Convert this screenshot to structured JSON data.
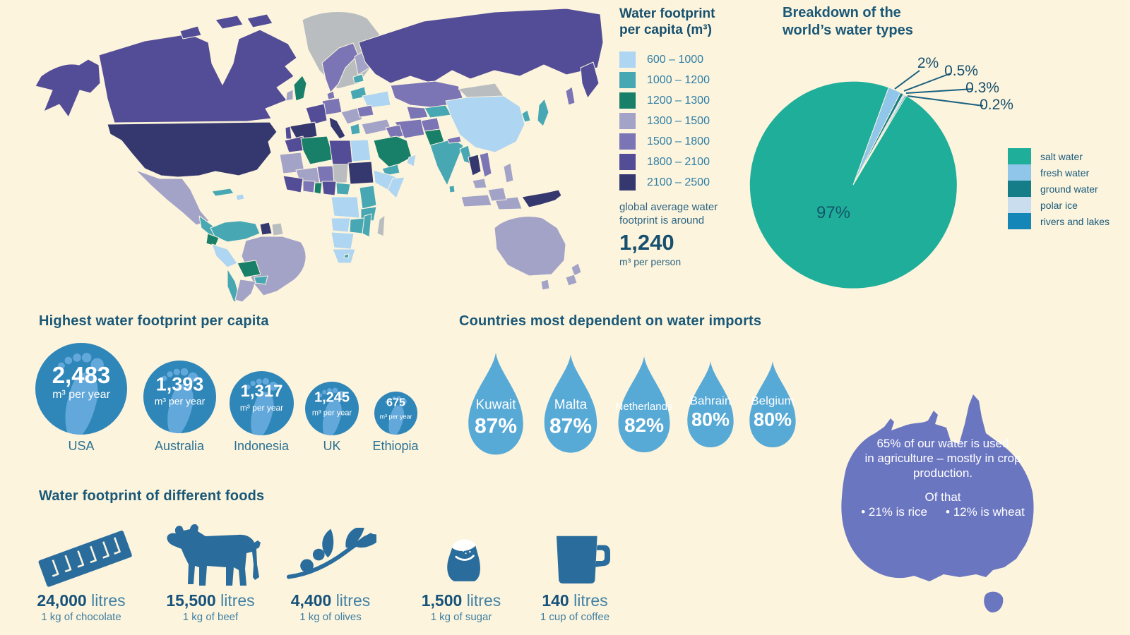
{
  "palette": {
    "background": "#fcf4dd",
    "heading_text": "#1a5878",
    "no_data_gray": "#b9bdbf",
    "footprint_circle_blue": "#2f86b8",
    "footprint_icon_blue": "#63a8da",
    "water_drop_blue": "#57a9d6",
    "australia_fill": "#6b76c1",
    "food_icon_blue": "#2a6d9d"
  },
  "chart_data": [
    {
      "type": "heatmap",
      "subtype": "world-choropleth",
      "title_line1": "Water footprint",
      "title_line2": "per capita (m³)",
      "bins": [
        {
          "label": "600 – 1000",
          "color": "#aed5f1"
        },
        {
          "label": "1000 – 1200",
          "color": "#47a8b4"
        },
        {
          "label": "1200 – 1300",
          "color": "#187f68"
        },
        {
          "label": "1300 – 1500",
          "color": "#a3a3c7"
        },
        {
          "label": "1500 – 1800",
          "color": "#7b74b5"
        },
        {
          "label": "1800 – 2100",
          "color": "#524d96"
        },
        {
          "label": "2100 – 2500",
          "color": "#35386e"
        }
      ],
      "no_data_color": "#b9bdbf",
      "note_line1": "global average water",
      "note_line2": "footprint is around",
      "average_value": "1,240",
      "average_unit": "m³ per person"
    },
    {
      "type": "pie",
      "title_line1": "Breakdown of the",
      "title_line2": "world’s water types",
      "start_angle_deg": 20,
      "legend_position": "right",
      "slices": [
        {
          "label": "salt water",
          "value": 97,
          "display": "97%",
          "color": "#1fae9a"
        },
        {
          "label": "fresh water",
          "value": 2,
          "display": "2%",
          "color": "#8fc6ea"
        },
        {
          "label": "ground water",
          "value": 0.5,
          "display": "0.5%",
          "color": "#147d87"
        },
        {
          "label": "polar ice",
          "value": 0.3,
          "display": "0.3%",
          "color": "#c9ddee"
        },
        {
          "label": "rivers and lakes",
          "value": 0.2,
          "display": "0.2%",
          "color": "#1487b8"
        }
      ]
    },
    {
      "type": "bar",
      "subtype": "footprint-circles",
      "title": "Highest water footprint per capita",
      "unit": "m³ per year",
      "items": [
        {
          "country": "USA",
          "value": 2483,
          "display": "2,483"
        },
        {
          "country": "Australia",
          "value": 1393,
          "display": "1,393"
        },
        {
          "country": "Indonesia",
          "value": 1317,
          "display": "1,317"
        },
        {
          "country": "UK",
          "value": 1245,
          "display": "1,245"
        },
        {
          "country": "Ethiopia",
          "value": 675,
          "display": "675"
        }
      ]
    },
    {
      "type": "bar",
      "subtype": "water-drops",
      "title": "Countries most dependent on water imports",
      "items": [
        {
          "country": "Kuwait",
          "value": 87,
          "display": "87%"
        },
        {
          "country": "Malta",
          "value": 87,
          "display": "87%"
        },
        {
          "country": "Netherlands",
          "value": 82,
          "display": "82%"
        },
        {
          "country": "Bahrain",
          "value": 80,
          "display": "80%"
        },
        {
          "country": "Belgium",
          "value": 80,
          "display": "80%"
        }
      ]
    },
    {
      "type": "bar",
      "subtype": "food-water-footprint",
      "title": "Water footprint of different foods",
      "unit": "litres",
      "items": [
        {
          "food": "chocolate",
          "value": 24000,
          "display": "24,000",
          "unit_word": "litres",
          "caption": "1 kg of chocolate"
        },
        {
          "food": "beef",
          "value": 15500,
          "display": "15,500",
          "unit_word": "litres",
          "caption": "1 kg of beef"
        },
        {
          "food": "olives",
          "value": 4400,
          "display": "4,400",
          "unit_word": "litres",
          "caption": "1 kg of olives"
        },
        {
          "food": "sugar",
          "value": 1500,
          "display": "1,500",
          "unit_word": "litres",
          "caption": "1 kg of sugar"
        },
        {
          "food": "coffee",
          "value": 140,
          "display": "140",
          "unit_word": "litres",
          "caption": "1 cup of coffee"
        }
      ]
    }
  ],
  "australia_callout": {
    "line1": "65% of our water is used",
    "line2": "in agriculture – mostly in crop",
    "line3": "production.",
    "line4": "Of that",
    "bullet1": "• 21% is rice",
    "bullet2": "• 12% is wheat"
  }
}
